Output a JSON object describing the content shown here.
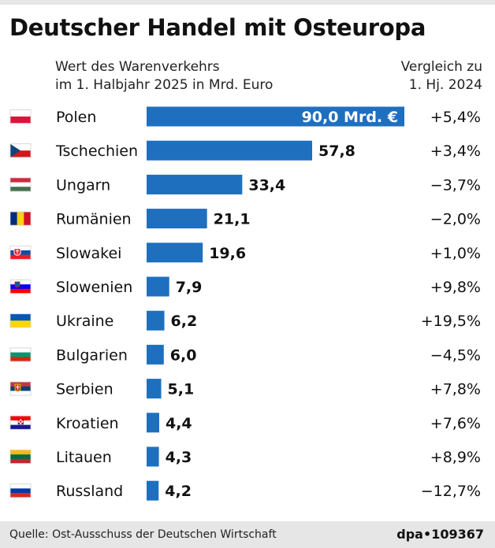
{
  "title": "Deutscher Handel mit Osteuropa",
  "subtitle": {
    "line1": "Wert des Warenverkehrs",
    "line2": "im 1. Halbjahr 2025 in Mrd. Euro"
  },
  "comparison_header": {
    "line1": "Vergleich zu",
    "line2": "1. Hj. 2024"
  },
  "colors": {
    "bar": "#1f6fbf",
    "bar_label_inside": "#ffffff",
    "text": "#111111",
    "footer_bg": "#e6e6e6"
  },
  "footer": {
    "source": "Quelle: Ost-Ausschuss der Deutschen Wirtschaft",
    "credit": "dpa•109367"
  },
  "chart_data": {
    "type": "bar",
    "orientation": "horizontal",
    "title": "Deutscher Handel mit Osteuropa",
    "unit": "Mrd. Euro",
    "xlim": [
      0,
      90
    ],
    "grid": false,
    "legend": "none",
    "categories": [
      "Polen",
      "Tschechien",
      "Ungarn",
      "Rumänien",
      "Slowakei",
      "Slowenien",
      "Ukraine",
      "Bulgarien",
      "Serbien",
      "Kroatien",
      "Litauen",
      "Russland"
    ],
    "values": [
      90.0,
      57.8,
      33.4,
      21.1,
      19.6,
      7.9,
      6.2,
      6.0,
      5.1,
      4.4,
      4.3,
      4.2
    ],
    "value_labels": [
      "90,0 Mrd. €",
      "57,8",
      "33,4",
      "21,1",
      "19,6",
      "7,9",
      "6,2",
      "6,0",
      "5,1",
      "4,4",
      "4,3",
      "4,2"
    ],
    "change_labels": [
      "+5,4%",
      "+3,4%",
      "−3,7%",
      "−2,0%",
      "+1,0%",
      "+9,8%",
      "+19,5%",
      "−4,5%",
      "+7,8%",
      "+7,6%",
      "+8,9%",
      "−12,7%"
    ],
    "flag_icons": [
      "flag-poland-icon",
      "flag-czechia-icon",
      "flag-hungary-icon",
      "flag-romania-icon",
      "flag-slovakia-icon",
      "flag-slovenia-icon",
      "flag-ukraine-icon",
      "flag-bulgaria-icon",
      "flag-serbia-icon",
      "flag-croatia-icon",
      "flag-lithuania-icon",
      "flag-russia-icon"
    ]
  }
}
